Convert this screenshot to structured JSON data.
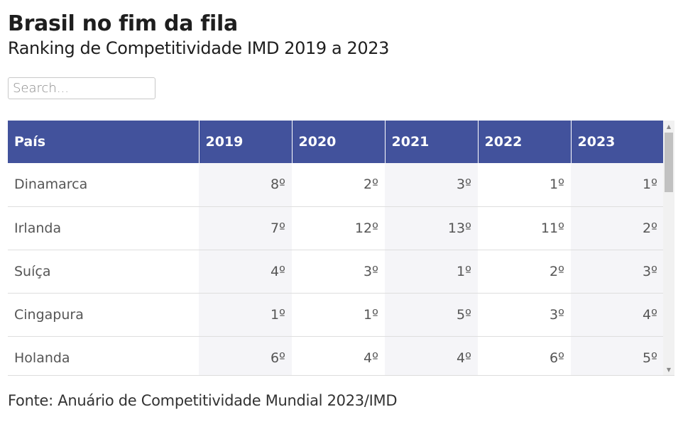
{
  "header": {
    "title": "Brasil no fim da fila",
    "subtitle": "Ranking de Competitividade IMD 2019 a 2023"
  },
  "search": {
    "placeholder": "Search...",
    "value": ""
  },
  "table": {
    "columns": [
      "País",
      "2019",
      "2020",
      "2021",
      "2022",
      "2023"
    ],
    "rows": [
      {
        "country": "Dinamarca",
        "values": [
          "8º",
          "2º",
          "3º",
          "1º",
          "1º"
        ]
      },
      {
        "country": "Irlanda",
        "values": [
          "7º",
          "12º",
          "13º",
          "11º",
          "2º"
        ]
      },
      {
        "country": "Suíça",
        "values": [
          "4º",
          "3º",
          "1º",
          "2º",
          "3º"
        ]
      },
      {
        "country": "Cingapura",
        "values": [
          "1º",
          "1º",
          "5º",
          "3º",
          "4º"
        ]
      },
      {
        "country": "Holanda",
        "values": [
          "6º",
          "4º",
          "4º",
          "6º",
          "5º"
        ]
      }
    ]
  },
  "scrollbar": {
    "up_icon": "triangle-up",
    "down_icon": "triangle-down"
  },
  "footer": {
    "source": "Fonte: Anuário de Competitividade Mundial 2023/IMD"
  },
  "colors": {
    "header_bg": "#42529c",
    "stripe_bg": "#f5f5f8"
  }
}
